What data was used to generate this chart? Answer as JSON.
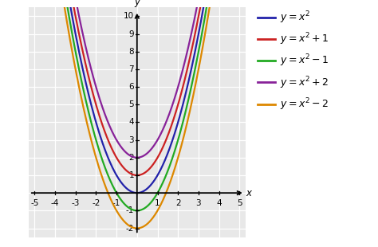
{
  "xlim": [
    -5.3,
    5.3
  ],
  "ylim": [
    -2.5,
    10.5
  ],
  "xaxis_range": [
    -5,
    5
  ],
  "yaxis_range": [
    -2,
    10
  ],
  "xticks": [
    -5,
    -4,
    -3,
    -2,
    -1,
    1,
    2,
    3,
    4,
    5
  ],
  "yticks": [
    -2,
    -1,
    1,
    2,
    3,
    4,
    5,
    6,
    7,
    8,
    9,
    10
  ],
  "xlabel": "x",
  "ylabel": "y",
  "curves": [
    {
      "shift": 0,
      "color": "#2222aa"
    },
    {
      "shift": 1,
      "color": "#cc2222"
    },
    {
      "shift": -1,
      "color": "#22aa22"
    },
    {
      "shift": 2,
      "color": "#882299"
    },
    {
      "shift": -2,
      "color": "#dd8800"
    }
  ],
  "background_color": "#e8e8e8",
  "grid_color": "#ffffff",
  "grid_linewidth": 0.9,
  "linewidth": 1.6,
  "tick_fontsize": 7.5,
  "legend_fontsize": 9.0
}
